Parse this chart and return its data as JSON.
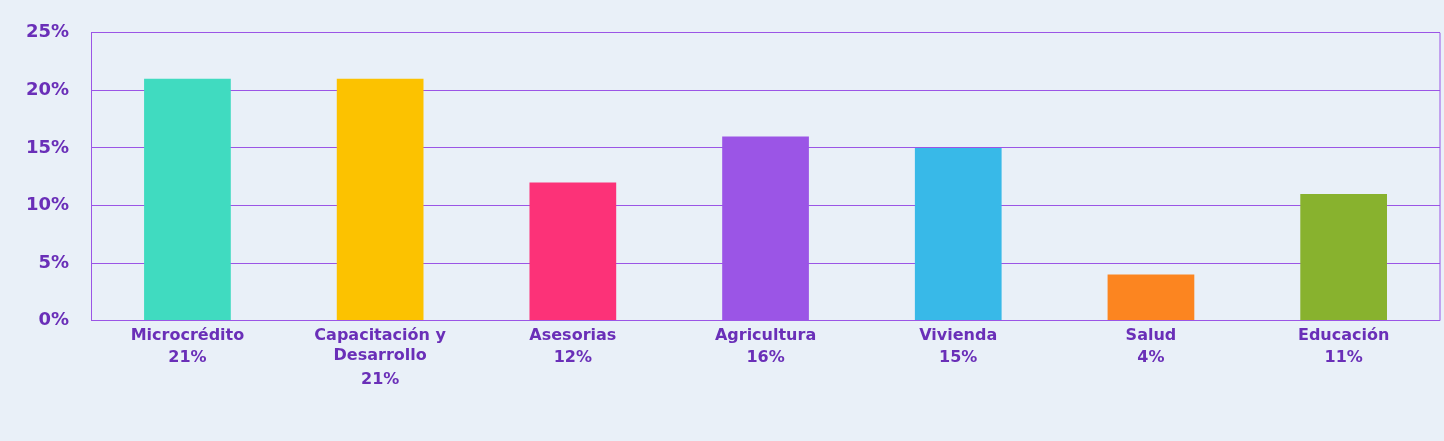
{
  "chart_data": {
    "type": "bar",
    "categories": [
      "Microcrédito",
      "Capacitación y Desarrollo",
      "Asesorias",
      "Agricultura",
      "Vivienda",
      "Salud",
      "Educación"
    ],
    "values": [
      21,
      21,
      12,
      16,
      15,
      4,
      11
    ],
    "colors": [
      "#40dbc0",
      "#fcc200",
      "#fc3278",
      "#9b55e6",
      "#38b9e8",
      "#fc8520",
      "#88b22e"
    ],
    "value_labels": [
      "21%",
      "21%",
      "12%",
      "16%",
      "15%",
      "4%",
      "11%"
    ],
    "ylim": [
      0,
      25
    ],
    "yticks": [
      {
        "value": 0,
        "label": "0%"
      },
      {
        "value": 5,
        "label": "5%"
      },
      {
        "value": 10,
        "label": "10%"
      },
      {
        "value": 15,
        "label": "15%"
      },
      {
        "value": 20,
        "label": "20%"
      },
      {
        "value": 25,
        "label": "25%"
      }
    ],
    "grid": "y",
    "legend": false
  }
}
